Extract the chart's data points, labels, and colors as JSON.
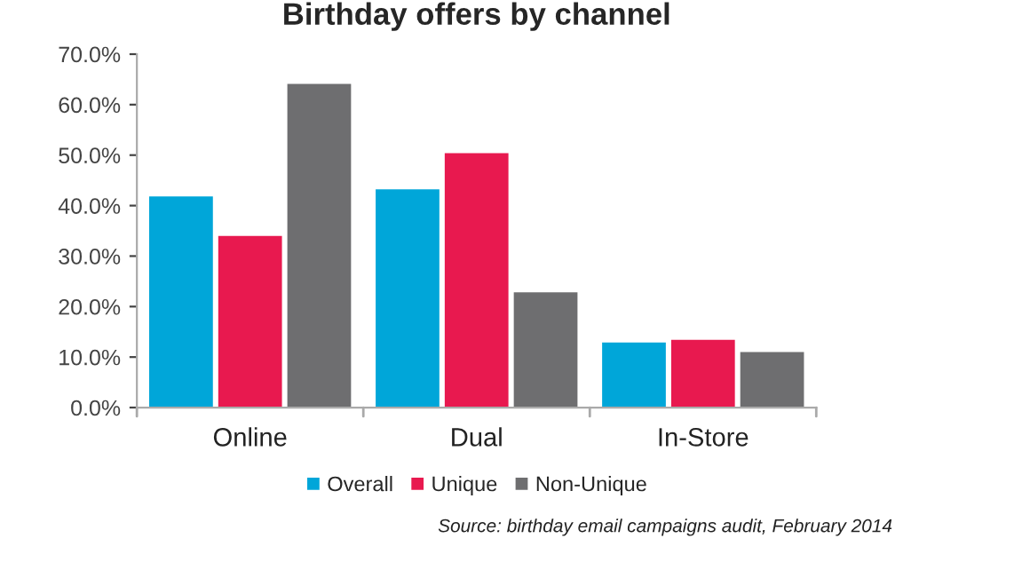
{
  "chart_data": {
    "type": "bar",
    "title": "Birthday offers by channel",
    "categories": [
      "Online",
      "Dual",
      "In-Store"
    ],
    "series": [
      {
        "name": "Overall",
        "color": "#00a6d9",
        "values": [
          42.0,
          43.4,
          13.1
        ]
      },
      {
        "name": "Unique",
        "color": "#e8194f",
        "values": [
          34.2,
          50.6,
          13.6
        ]
      },
      {
        "name": "Non-Unique",
        "color": "#6e6e70",
        "values": [
          64.3,
          23.0,
          11.2
        ]
      }
    ],
    "ylim": [
      0,
      70
    ],
    "yticks": [
      {
        "value": 0,
        "label": "0.0%"
      },
      {
        "value": 10,
        "label": "10.0%"
      },
      {
        "value": 20,
        "label": "20.0%"
      },
      {
        "value": 30,
        "label": "30.0%"
      },
      {
        "value": 40,
        "label": "40.0%"
      },
      {
        "value": 50,
        "label": "50.0%"
      },
      {
        "value": 60,
        "label": "60.0%"
      },
      {
        "value": 70,
        "label": "70.0%"
      }
    ],
    "grid": false,
    "legend": "bottom",
    "annotations": [
      "Source: birthday email campaigns audit, February 2014"
    ]
  }
}
